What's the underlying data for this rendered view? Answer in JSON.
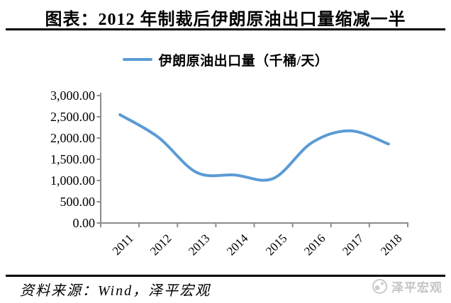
{
  "page": {
    "title": "图表：2012 年制裁后伊朗原油出口量缩减一半"
  },
  "legend": {
    "label": "伊朗原油出口量（千桶/天）"
  },
  "chart_data": {
    "type": "line",
    "title": "图表：2012 年制裁后伊朗原油出口量缩减一半",
    "categories": [
      "2011",
      "2012",
      "2013",
      "2014",
      "2015",
      "2016",
      "2017",
      "2018"
    ],
    "series": [
      {
        "name": "伊朗原油出口量（千桶/天）",
        "values": [
          2550,
          2020,
          1190,
          1130,
          1050,
          1890,
          2170,
          1860
        ]
      }
    ],
    "xlabel": "",
    "ylabel": "",
    "ylim": [
      0,
      3000
    ],
    "ytick_step": 500,
    "ytick_labels": [
      "0.00",
      "500.00",
      "1,000.00",
      "1,500.00",
      "2,000.00",
      "2,500.00",
      "3,000.00"
    ],
    "grid": false,
    "legend_position": "top",
    "smooth": true,
    "line_color": "#5B9BD5",
    "axis_color": "#8C8C8C"
  },
  "footer": {
    "source": "资料来源：Wind，泽平宏观",
    "watermark": "泽平宏观"
  }
}
